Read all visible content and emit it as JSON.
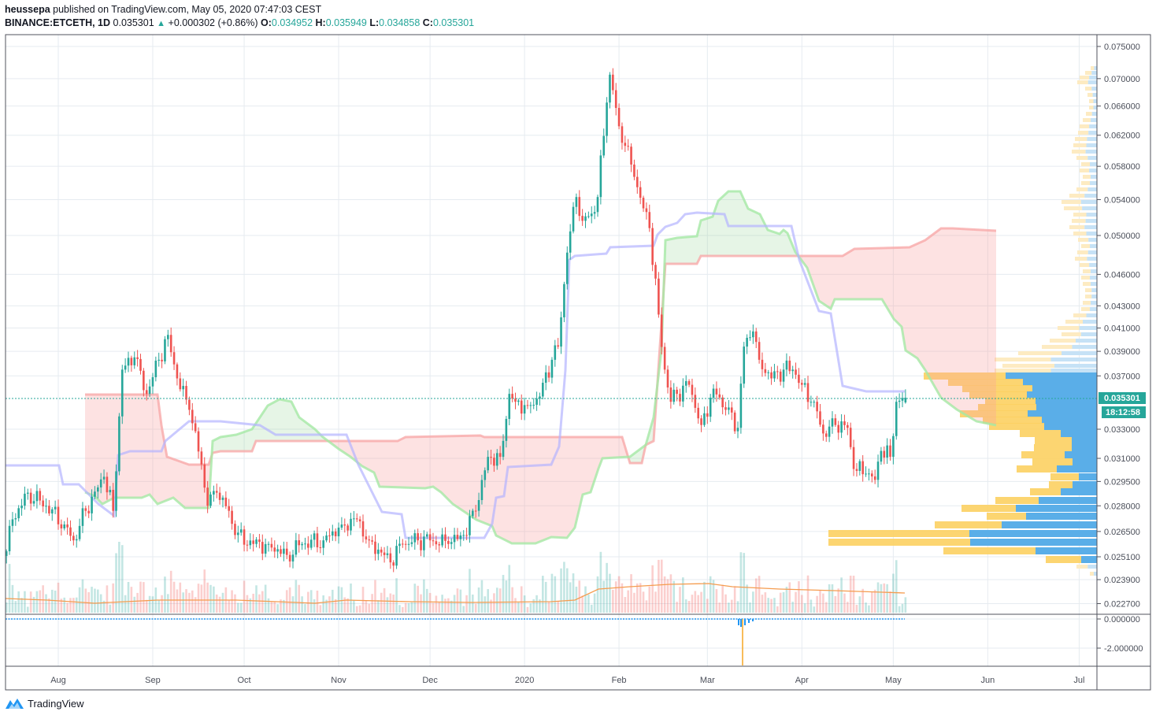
{
  "header": {
    "author": "heussepa",
    "published_text": "published on TradingView.com, May 05, 2020 07:47:03 CEST",
    "symbol": "BINANCE:ETCETH, 1D",
    "last": "0.035301",
    "change": "+0.000302 (+0.86%)",
    "open_label": "O:",
    "open": "0.034952",
    "high_label": "H:",
    "high": "0.035949",
    "low_label": "L:",
    "low": "0.034858",
    "close_label": "C:",
    "close": "0.035301"
  },
  "price_axis": {
    "scale": "log",
    "ticks": [
      "0.075000",
      "0.070000",
      "0.066000",
      "0.062000",
      "0.058000",
      "0.054000",
      "0.050000",
      "0.046000",
      "0.043000",
      "0.041000",
      "0.039000",
      "0.037000",
      "0.033000",
      "0.031000",
      "0.029500",
      "0.028000",
      "0.026500",
      "0.025100",
      "0.023900",
      "0.022700"
    ],
    "last_price_label": "0.035301",
    "countdown": "18:12:58"
  },
  "sub_axis": {
    "ticks": [
      "0.000000",
      "-2.000000"
    ]
  },
  "time_axis": {
    "labels": [
      {
        "text": "Aug",
        "date": "2019-08-01"
      },
      {
        "text": "Sep",
        "date": "2019-09-01"
      },
      {
        "text": "Oct",
        "date": "2019-10-01"
      },
      {
        "text": "Nov",
        "date": "2019-11-01"
      },
      {
        "text": "Dec",
        "date": "2019-12-01"
      },
      {
        "text": "2020",
        "date": "2020-01-01"
      },
      {
        "text": "Feb",
        "date": "2020-02-01"
      },
      {
        "text": "Mar",
        "date": "2020-03-01"
      },
      {
        "text": "Apr",
        "date": "2020-04-01"
      },
      {
        "text": "May",
        "date": "2020-05-01"
      },
      {
        "text": "Jun",
        "date": "2020-06-01"
      },
      {
        "text": "Jul",
        "date": "2020-07-01"
      }
    ]
  },
  "colors": {
    "up": "#26a69a",
    "down": "#ef5350",
    "accent": "#26a69a",
    "kijun": "#b3b3ff",
    "span_a": "#a5e8a5",
    "span_b": "#f7a9a9",
    "vol_ma": "#f59c4f",
    "vp_up": "#5aaee8",
    "vp_down": "#fcd062"
  },
  "chart_data": {
    "type": "candlestick",
    "symbol": "BINANCE:ETCETH",
    "interval": "1D",
    "y_scale": "log",
    "ylim": [
      0.0227,
      0.075
    ],
    "xlim": [
      "2019-07-15",
      "2020-07-08"
    ],
    "grid": true,
    "close_points": [
      [
        "2019-07-15",
        0.0254
      ],
      [
        "2019-07-17",
        0.0272
      ],
      [
        "2019-07-22",
        0.0288
      ],
      [
        "2019-07-28",
        0.028
      ],
      [
        "2019-08-03",
        0.0269
      ],
      [
        "2019-08-06",
        0.026
      ],
      [
        "2019-08-10",
        0.0277
      ],
      [
        "2019-08-16",
        0.0298
      ],
      [
        "2019-08-19",
        0.0277
      ],
      [
        "2019-08-22",
        0.0375
      ],
      [
        "2019-08-26",
        0.0385
      ],
      [
        "2019-08-30",
        0.0356
      ],
      [
        "2019-09-03",
        0.0383
      ],
      [
        "2019-09-06",
        0.0404
      ],
      [
        "2019-09-09",
        0.0368
      ],
      [
        "2019-09-13",
        0.0344
      ],
      [
        "2019-09-17",
        0.0306
      ],
      [
        "2019-09-19",
        0.028
      ],
      [
        "2019-09-22",
        0.0288
      ],
      [
        "2019-09-26",
        0.0277
      ],
      [
        "2019-09-28",
        0.0263
      ],
      [
        "2019-10-04",
        0.0258
      ],
      [
        "2019-10-09",
        0.0258
      ],
      [
        "2019-10-15",
        0.0252
      ],
      [
        "2019-10-20",
        0.0258
      ],
      [
        "2019-10-27",
        0.026
      ],
      [
        "2019-11-02",
        0.0269
      ],
      [
        "2019-11-07",
        0.0272
      ],
      [
        "2019-11-11",
        0.026
      ],
      [
        "2019-11-18",
        0.0248
      ],
      [
        "2019-11-22",
        0.0258
      ],
      [
        "2019-11-27",
        0.026
      ],
      [
        "2019-12-01",
        0.026
      ],
      [
        "2019-12-07",
        0.0258
      ],
      [
        "2019-12-12",
        0.0263
      ],
      [
        "2019-12-16",
        0.0277
      ],
      [
        "2019-12-20",
        0.0311
      ],
      [
        "2019-12-24",
        0.0311
      ],
      [
        "2019-12-27",
        0.0356
      ],
      [
        "2019-12-29",
        0.035
      ],
      [
        "2020-01-02",
        0.0347
      ],
      [
        "2020-01-06",
        0.0354
      ],
      [
        "2020-01-10",
        0.0383
      ],
      [
        "2020-01-12",
        0.0394
      ],
      [
        "2020-01-15",
        0.0482
      ],
      [
        "2020-01-18",
        0.0543
      ],
      [
        "2020-01-20",
        0.0516
      ],
      [
        "2020-01-23",
        0.0524
      ],
      [
        "2020-01-25",
        0.0543
      ],
      [
        "2020-01-28",
        0.0665
      ],
      [
        "2020-01-29",
        0.0706
      ],
      [
        "2020-02-01",
        0.0632
      ],
      [
        "2020-02-03",
        0.0606
      ],
      [
        "2020-02-06",
        0.0567
      ],
      [
        "2020-02-09",
        0.053
      ],
      [
        "2020-02-11",
        0.0508
      ],
      [
        "2020-02-14",
        0.0422
      ],
      [
        "2020-02-16",
        0.0375
      ],
      [
        "2020-02-18",
        0.035
      ],
      [
        "2020-02-20",
        0.0356
      ],
      [
        "2020-02-24",
        0.0363
      ],
      [
        "2020-02-28",
        0.0333
      ],
      [
        "2020-03-03",
        0.036
      ],
      [
        "2020-03-07",
        0.0344
      ],
      [
        "2020-03-11",
        0.0331
      ],
      [
        "2020-03-13",
        0.0394
      ],
      [
        "2020-03-16",
        0.0407
      ],
      [
        "2020-03-18",
        0.0383
      ],
      [
        "2020-03-22",
        0.0368
      ],
      [
        "2020-03-26",
        0.0375
      ],
      [
        "2020-03-29",
        0.0375
      ],
      [
        "2020-04-01",
        0.0363
      ],
      [
        "2020-04-05",
        0.035
      ],
      [
        "2020-04-08",
        0.0327
      ],
      [
        "2020-04-12",
        0.0333
      ],
      [
        "2020-04-16",
        0.0331
      ],
      [
        "2020-04-18",
        0.0303
      ],
      [
        "2020-04-22",
        0.03
      ],
      [
        "2020-04-25",
        0.0296
      ],
      [
        "2020-04-27",
        0.0315
      ],
      [
        "2020-04-30",
        0.0311
      ],
      [
        "2020-05-02",
        0.035
      ],
      [
        "2020-05-05",
        0.035301
      ]
    ],
    "last_candle": {
      "date": "2020-05-05",
      "open": 0.034952,
      "high": 0.035949,
      "low": 0.034858,
      "close": 0.035301
    },
    "indicators": [
      "Ichimoku Cloud",
      "Volume",
      "Volume Profile"
    ]
  },
  "footer": {
    "brand": "TradingView"
  }
}
